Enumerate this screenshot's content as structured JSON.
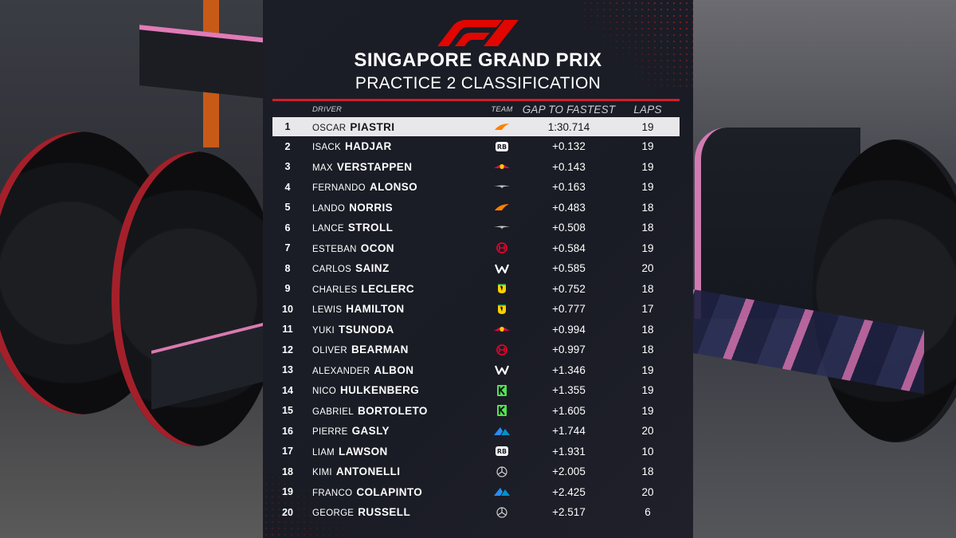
{
  "header": {
    "title": "SINGAPORE GRAND PRIX",
    "subtitle": "PRACTICE 2 CLASSIFICATION"
  },
  "columns": {
    "driver": "DRIVER",
    "team": "TEAM",
    "gap": "GAP TO FASTEST",
    "laps": "LAPS"
  },
  "colors": {
    "accent": "#d21d2b",
    "panel": "#1b1d27",
    "highlight_row": "#e8e8ea"
  },
  "rows": [
    {
      "pos": "1",
      "first": "OSCAR",
      "last": "PIASTRI",
      "team_icon": "mclaren-icon",
      "gap": "1:30.714",
      "laps": "19"
    },
    {
      "pos": "2",
      "first": "ISACK",
      "last": "HADJAR",
      "team_icon": "racing-bulls-icon",
      "gap": "+0.132",
      "laps": "19"
    },
    {
      "pos": "3",
      "first": "MAX",
      "last": "VERSTAPPEN",
      "team_icon": "red-bull-icon",
      "gap": "+0.143",
      "laps": "19"
    },
    {
      "pos": "4",
      "first": "FERNANDO",
      "last": "ALONSO",
      "team_icon": "aston-martin-icon",
      "gap": "+0.163",
      "laps": "19"
    },
    {
      "pos": "5",
      "first": "LANDO",
      "last": "NORRIS",
      "team_icon": "mclaren-icon",
      "gap": "+0.483",
      "laps": "18"
    },
    {
      "pos": "6",
      "first": "LANCE",
      "last": "STROLL",
      "team_icon": "aston-martin-icon",
      "gap": "+0.508",
      "laps": "18"
    },
    {
      "pos": "7",
      "first": "ESTEBAN",
      "last": "OCON",
      "team_icon": "haas-icon",
      "gap": "+0.584",
      "laps": "19"
    },
    {
      "pos": "8",
      "first": "CARLOS",
      "last": "SAINZ",
      "team_icon": "williams-icon",
      "gap": "+0.585",
      "laps": "20"
    },
    {
      "pos": "9",
      "first": "CHARLES",
      "last": "LECLERC",
      "team_icon": "ferrari-icon",
      "gap": "+0.752",
      "laps": "18"
    },
    {
      "pos": "10",
      "first": "LEWIS",
      "last": "HAMILTON",
      "team_icon": "ferrari-icon",
      "gap": "+0.777",
      "laps": "17"
    },
    {
      "pos": "11",
      "first": "YUKI",
      "last": "TSUNODA",
      "team_icon": "red-bull-icon",
      "gap": "+0.994",
      "laps": "18"
    },
    {
      "pos": "12",
      "first": "OLIVER",
      "last": "BEARMAN",
      "team_icon": "haas-icon",
      "gap": "+0.997",
      "laps": "18"
    },
    {
      "pos": "13",
      "first": "ALEXANDER",
      "last": "ALBON",
      "team_icon": "williams-icon",
      "gap": "+1.346",
      "laps": "19"
    },
    {
      "pos": "14",
      "first": "NICO",
      "last": "HULKENBERG",
      "team_icon": "sauber-icon",
      "gap": "+1.355",
      "laps": "19"
    },
    {
      "pos": "15",
      "first": "GABRIEL",
      "last": "BORTOLETO",
      "team_icon": "sauber-icon",
      "gap": "+1.605",
      "laps": "19"
    },
    {
      "pos": "16",
      "first": "PIERRE",
      "last": "GASLY",
      "team_icon": "alpine-icon",
      "gap": "+1.744",
      "laps": "20"
    },
    {
      "pos": "17",
      "first": "LIAM",
      "last": "LAWSON",
      "team_icon": "racing-bulls-icon",
      "gap": "+1.931",
      "laps": "10"
    },
    {
      "pos": "18",
      "first": "KIMI",
      "last": "ANTONELLI",
      "team_icon": "mercedes-icon",
      "gap": "+2.005",
      "laps": "18"
    },
    {
      "pos": "19",
      "first": "FRANCO",
      "last": "COLAPINTO",
      "team_icon": "alpine-icon",
      "gap": "+2.425",
      "laps": "20"
    },
    {
      "pos": "20",
      "first": "GEORGE",
      "last": "RUSSELL",
      "team_icon": "mercedes-icon",
      "gap": "+2.517",
      "laps": "6"
    }
  ]
}
